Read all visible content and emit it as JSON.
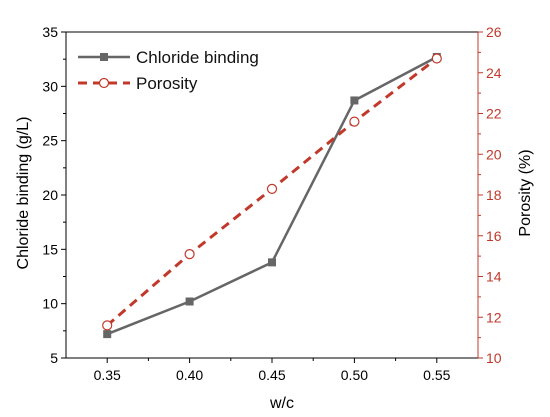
{
  "chart_data": {
    "type": "line",
    "x": [
      0.35,
      0.4,
      0.45,
      0.5,
      0.55
    ],
    "x_tick_labels": [
      "0.35",
      "0.40",
      "0.45",
      "0.50",
      "0.55"
    ],
    "xlabel": "w/c",
    "xlim": [
      0.325,
      0.575
    ],
    "left_axis": {
      "label": "Chloride binding (g/L)",
      "ylim": [
        5,
        35
      ],
      "ticks": [
        5,
        10,
        15,
        20,
        25,
        30,
        35
      ],
      "tick_labels": [
        "5",
        "10",
        "15",
        "20",
        "25",
        "30",
        "35"
      ],
      "color": "#000000"
    },
    "right_axis": {
      "label": "Porosity (%)",
      "ylim": [
        10,
        26
      ],
      "ticks": [
        10,
        12,
        14,
        16,
        18,
        20,
        22,
        24,
        26
      ],
      "tick_labels": [
        "10",
        "12",
        "14",
        "16",
        "18",
        "20",
        "22",
        "24",
        "26"
      ],
      "color": "#c0392b"
    },
    "series": [
      {
        "name": "Chloride binding",
        "axis": "left",
        "values": [
          7.2,
          10.2,
          13.8,
          28.7,
          32.7
        ],
        "color": "#666666",
        "line_style": "solid",
        "marker": "square-filled"
      },
      {
        "name": "Porosity",
        "axis": "right",
        "values": [
          11.6,
          15.1,
          18.3,
          21.6,
          24.7
        ],
        "color": "#c0392b",
        "line_style": "dashed",
        "marker": "circle-open"
      }
    ],
    "legend_position": "top-left",
    "grid": false
  }
}
